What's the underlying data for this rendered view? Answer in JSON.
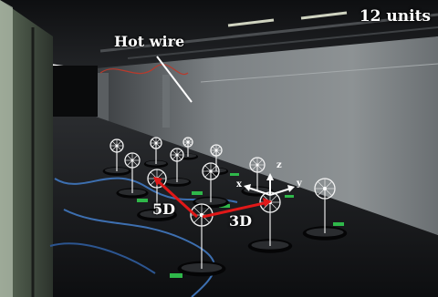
{
  "photo": {
    "unit_count_label": "12 units",
    "hot_wire_label": "Hot wire",
    "streamwise_spacing_label": "5D",
    "spanwise_spacing_label": "3D",
    "axes": {
      "x": "x",
      "y": "y",
      "z": "z"
    },
    "colors": {
      "annotation_text": "#ffffff",
      "spacing_arrows": "#e01818",
      "wall": "#8d9294",
      "floor": "#16181b",
      "tape_markers": "#2fb84a"
    }
  }
}
